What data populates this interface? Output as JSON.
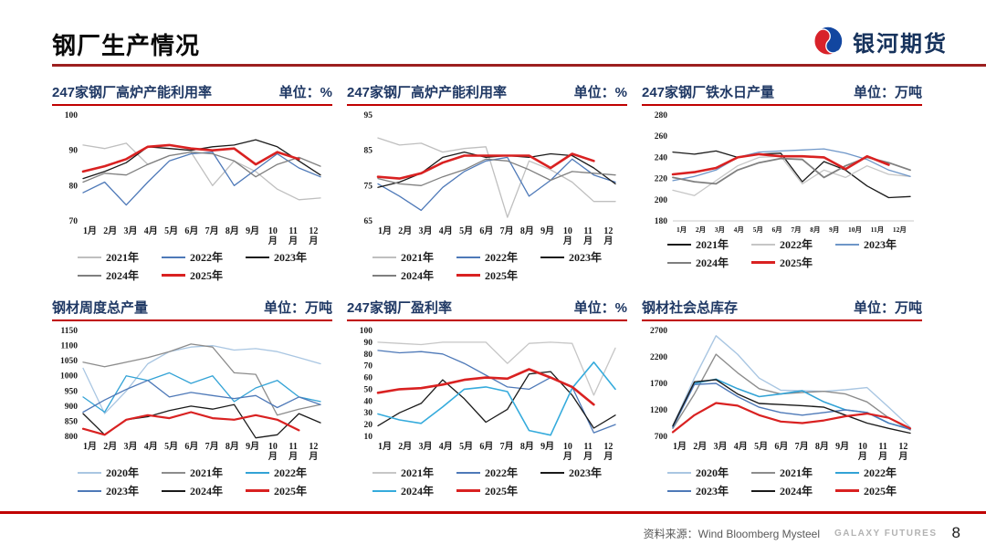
{
  "header": {
    "title": "钢厂生产情况",
    "logo_text": "银河期货"
  },
  "footer": {
    "source_label": "资料来源：Wind Bloomberg Mysteel",
    "brand": "GALAXY FUTURES",
    "page_number": "8"
  },
  "colors": {
    "header_rule": "#9c1f1f",
    "panel_rule": "#c00000",
    "title_navy": "#1f3864",
    "logo_red": "#d8222a",
    "logo_blue": "#1246a0"
  },
  "chart_data": [
    {
      "type": "line",
      "title": "247家钢厂高炉产能利用率",
      "unit_label": "单位：%",
      "ylim": [
        70,
        100
      ],
      "yticks": [
        100,
        90,
        80,
        70
      ],
      "x_categories": [
        "1月",
        "2月",
        "3月",
        "4月",
        "5月",
        "6月",
        "7月",
        "8月",
        "9月",
        "10月",
        "11月",
        "12月"
      ],
      "xlabel_style": "wrap",
      "legend_position": "bottom",
      "grid": false,
      "series": [
        {
          "name": "2021年",
          "color": "#bfbfbf",
          "width": 1.3,
          "values": [
            91.5,
            90.5,
            92,
            86,
            88.5,
            89.5,
            80,
            87,
            84,
            79,
            76,
            76.5
          ]
        },
        {
          "name": "2022年",
          "color": "#4e79b8",
          "width": 1.3,
          "values": [
            78,
            81,
            74.5,
            81,
            87,
            89,
            89.5,
            80,
            84.5,
            89,
            85,
            82.5
          ]
        },
        {
          "name": "2023年",
          "color": "#1a1a1a",
          "width": 1.3,
          "values": [
            82,
            84,
            86.5,
            91,
            90.5,
            90,
            91,
            91.5,
            93,
            91,
            87,
            83
          ]
        },
        {
          "name": "2024年",
          "color": "#7f7f7f",
          "width": 1.3,
          "values": [
            81,
            83.5,
            83,
            86,
            88.5,
            89.5,
            89,
            87,
            82.5,
            86,
            88,
            85.5
          ]
        },
        {
          "name": "2025年",
          "color": "#d92121",
          "width": 2.6,
          "values": [
            84,
            85.5,
            87.5,
            91,
            91.5,
            90.5,
            90,
            90.5,
            86,
            89.5,
            87.5,
            null
          ]
        }
      ]
    },
    {
      "type": "line",
      "title": "247家钢厂高炉产能利用率",
      "unit_label": "单位：%",
      "ylim": [
        65,
        95
      ],
      "yticks": [
        95,
        85,
        75,
        65
      ],
      "x_categories": [
        "1月",
        "2月",
        "3月",
        "4月",
        "5月",
        "6月",
        "7月",
        "8月",
        "9月",
        "10月",
        "11月",
        "12月"
      ],
      "xlabel_style": "wrap",
      "legend_position": "bottom",
      "grid": false,
      "series": [
        {
          "name": "2021年",
          "color": "#bfbfbf",
          "width": 1.3,
          "values": [
            88.5,
            86.5,
            87,
            84.5,
            85.5,
            86,
            66,
            82,
            79.5,
            76,
            70.5,
            70.5
          ]
        },
        {
          "name": "2022年",
          "color": "#4e79b8",
          "width": 1.3,
          "values": [
            75.5,
            72,
            68,
            74.5,
            79,
            82,
            83,
            72,
            76.5,
            82.5,
            78,
            76
          ]
        },
        {
          "name": "2023年",
          "color": "#1a1a1a",
          "width": 1.3,
          "values": [
            74.5,
            76,
            78.5,
            83,
            84.5,
            83,
            83.5,
            83,
            84,
            83.5,
            80,
            75.5
          ]
        },
        {
          "name": "2024年",
          "color": "#7f7f7f",
          "width": 1.3,
          "values": [
            77,
            75.5,
            75,
            77.5,
            79.5,
            82.5,
            82,
            79.5,
            76.5,
            79,
            78.5,
            78
          ]
        },
        {
          "name": "2025年",
          "color": "#d92121",
          "width": 2.6,
          "values": [
            77.5,
            77,
            78.5,
            81.5,
            83.5,
            83.5,
            83.5,
            83.5,
            80,
            84,
            82,
            null
          ]
        }
      ]
    },
    {
      "type": "line",
      "title": "247家钢厂铁水日产量",
      "unit_label": "单位：万吨",
      "ylim": [
        180,
        280
      ],
      "yticks": [
        280,
        260,
        240,
        220,
        200,
        180
      ],
      "x_categories": [
        "1月",
        "2月",
        "3月",
        "4月",
        "5月",
        "6月",
        "7月",
        "8月",
        "9月",
        "10月",
        "11月",
        "12月"
      ],
      "xlabel_style": "inline",
      "legend_position": "bottom",
      "grid": false,
      "baseline": true,
      "series": [
        {
          "name": "2021年",
          "color": "#1a1a1a",
          "width": 1.3,
          "values": [
            245,
            243,
            246,
            240,
            243,
            244,
            217,
            236,
            228,
            213,
            202,
            203
          ]
        },
        {
          "name": "2022年",
          "color": "#c6c6c6",
          "width": 1.3,
          "values": [
            209,
            204,
            218,
            232,
            240,
            241,
            215,
            228,
            221,
            232,
            224,
            222
          ]
        },
        {
          "name": "2023年",
          "color": "#6e96c8",
          "width": 1.3,
          "values": [
            218,
            222,
            228,
            240,
            245,
            246,
            247,
            248,
            244,
            238,
            228,
            222
          ]
        },
        {
          "name": "2024年",
          "color": "#7f7f7f",
          "width": 1.8,
          "values": [
            221,
            217,
            215,
            228,
            235,
            239,
            238,
            221,
            232,
            240,
            235,
            228
          ]
        },
        {
          "name": "2025年",
          "color": "#d92121",
          "width": 2.6,
          "values": [
            224,
            226,
            230,
            240,
            243,
            241,
            241,
            240,
            229,
            241,
            233,
            null
          ]
        }
      ]
    },
    {
      "type": "line",
      "title": "钢材周度总产量",
      "unit_label": "单位：万吨",
      "ylim": [
        800,
        1150
      ],
      "yticks": [
        1150,
        1100,
        1050,
        1000,
        950,
        900,
        850,
        800
      ],
      "x_categories": [
        "1月",
        "2月",
        "3月",
        "4月",
        "5月",
        "6月",
        "7月",
        "8月",
        "9月",
        "10月",
        "11月",
        "12月"
      ],
      "xlabel_style": "wrap",
      "legend_position": "bottom",
      "grid": false,
      "series": [
        {
          "name": "2020年",
          "color": "#a9c6e2",
          "width": 1.3,
          "values": [
            1025,
            875,
            950,
            1040,
            1080,
            1095,
            1100,
            1085,
            1090,
            1080,
            1060,
            1040
          ]
        },
        {
          "name": "2021年",
          "color": "#8c8c8c",
          "width": 1.3,
          "values": [
            1045,
            1030,
            1045,
            1060,
            1080,
            1105,
            1095,
            1010,
            1005,
            870,
            890,
            905
          ]
        },
        {
          "name": "2022年",
          "color": "#33a3d6",
          "width": 1.3,
          "values": [
            930,
            880,
            1000,
            985,
            1010,
            975,
            1000,
            915,
            960,
            985,
            930,
            915
          ]
        },
        {
          "name": "2023年",
          "color": "#4e79b8",
          "width": 1.3,
          "values": [
            880,
            920,
            955,
            985,
            930,
            945,
            935,
            925,
            935,
            895,
            930,
            905
          ]
        },
        {
          "name": "2024年",
          "color": "#1a1a1a",
          "width": 1.3,
          "values": [
            875,
            805,
            855,
            865,
            885,
            900,
            890,
            905,
            795,
            805,
            875,
            845
          ]
        },
        {
          "name": "2025年",
          "color": "#d92121",
          "width": 2.2,
          "values": [
            825,
            805,
            855,
            870,
            860,
            880,
            860,
            855,
            870,
            855,
            820,
            null
          ]
        }
      ]
    },
    {
      "type": "line",
      "title": "247家钢厂盈利率",
      "unit_label": "单位：%",
      "ylim": [
        10,
        100
      ],
      "yticks": [
        100,
        90,
        80,
        70,
        60,
        50,
        40,
        30,
        20,
        10
      ],
      "x_categories": [
        "1月",
        "2月",
        "3月",
        "4月",
        "5月",
        "6月",
        "7月",
        "8月",
        "9月",
        "10月",
        "11月",
        "12月"
      ],
      "xlabel_style": "wrap",
      "legend_position": "bottom",
      "grid": false,
      "series": [
        {
          "name": "2021年",
          "color": "#c6c6c6",
          "width": 1.3,
          "values": [
            90,
            89,
            88,
            90,
            90,
            90,
            72,
            89,
            90,
            89,
            45,
            85
          ]
        },
        {
          "name": "2022年",
          "color": "#4e79b8",
          "width": 1.3,
          "values": [
            83,
            81,
            82,
            80,
            72,
            62,
            52,
            50,
            60,
            52,
            13,
            20
          ]
        },
        {
          "name": "2023年",
          "color": "#1a1a1a",
          "width": 1.3,
          "values": [
            19,
            30,
            38,
            58,
            42,
            22,
            33,
            63,
            65,
            45,
            17,
            28
          ]
        },
        {
          "name": "2024年",
          "color": "#35abdc",
          "width": 1.6,
          "values": [
            29,
            24,
            21,
            35,
            50,
            52,
            48,
            15,
            11,
            51,
            73,
            50
          ]
        },
        {
          "name": "2025年",
          "color": "#d92121",
          "width": 2.6,
          "values": [
            47,
            50,
            51,
            54,
            58,
            60,
            59,
            67,
            60,
            52,
            37,
            null
          ]
        }
      ]
    },
    {
      "type": "line",
      "title": "钢材社会总库存",
      "unit_label": "单位：万吨",
      "ylim": [
        700,
        2700
      ],
      "yticks": [
        2700,
        2200,
        1700,
        1200,
        700
      ],
      "x_categories": [
        "1月",
        "2月",
        "3月",
        "4月",
        "5月",
        "6月",
        "7月",
        "8月",
        "9月",
        "10月",
        "11月",
        "12月"
      ],
      "xlabel_style": "wrap",
      "legend_position": "bottom",
      "grid": false,
      "series": [
        {
          "name": "2020年",
          "color": "#a9c6e2",
          "width": 1.4,
          "values": [
            900,
            1800,
            2600,
            2250,
            1800,
            1570,
            1560,
            1550,
            1580,
            1620,
            1250,
            870
          ]
        },
        {
          "name": "2021年",
          "color": "#8c8c8c",
          "width": 1.4,
          "values": [
            850,
            1500,
            2250,
            1900,
            1600,
            1500,
            1530,
            1550,
            1500,
            1350,
            1050,
            820
          ]
        },
        {
          "name": "2022年",
          "color": "#33a3d6",
          "width": 1.6,
          "values": [
            880,
            1700,
            1780,
            1600,
            1450,
            1500,
            1560,
            1350,
            1200,
            1150,
            950,
            840
          ]
        },
        {
          "name": "2023年",
          "color": "#4e79b8",
          "width": 1.4,
          "values": [
            870,
            1680,
            1700,
            1450,
            1250,
            1150,
            1100,
            1150,
            1200,
            1150,
            950,
            830
          ]
        },
        {
          "name": "2024年",
          "color": "#1a1a1a",
          "width": 1.4,
          "values": [
            900,
            1730,
            1770,
            1500,
            1320,
            1300,
            1280,
            1250,
            1100,
            950,
            850,
            760
          ]
        },
        {
          "name": "2025年",
          "color": "#d92121",
          "width": 2.2,
          "values": [
            780,
            1100,
            1330,
            1280,
            1100,
            980,
            950,
            1000,
            1080,
            1130,
            1050,
            850
          ]
        }
      ]
    }
  ]
}
